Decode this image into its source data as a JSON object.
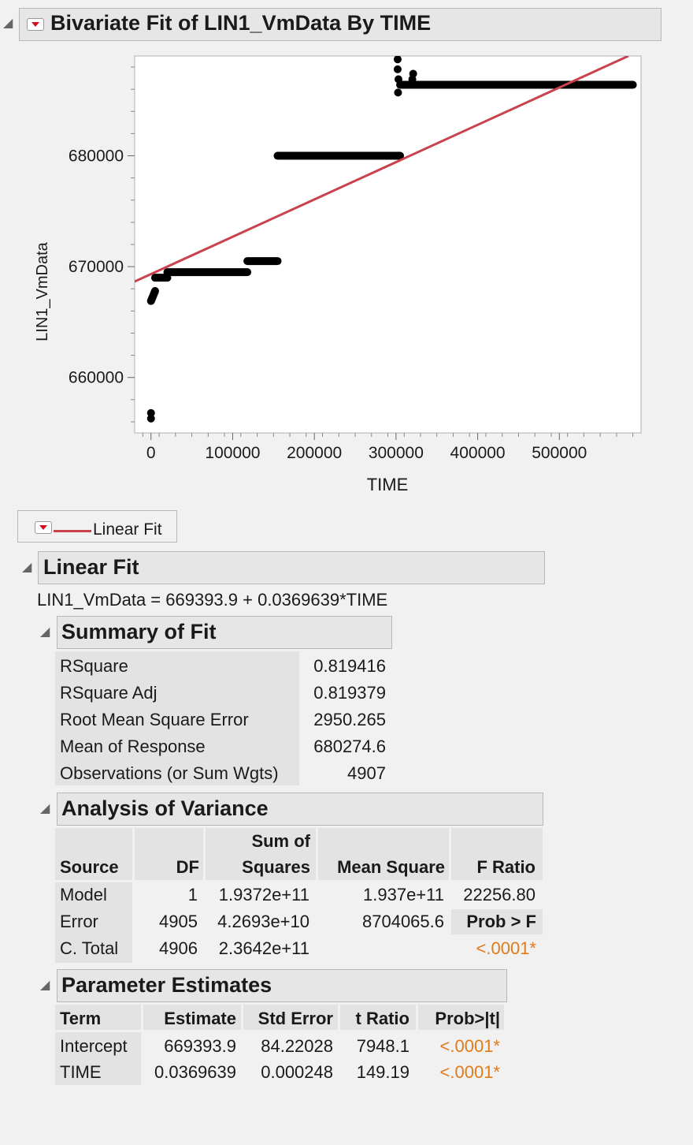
{
  "report": {
    "title": "Bivariate Fit of LIN1_VmData By TIME"
  },
  "chart_data": {
    "type": "scatter",
    "xlabel": "TIME",
    "ylabel": "LIN1_VmData",
    "xlim": [
      -20000,
      600000
    ],
    "ylim": [
      655000,
      689000
    ],
    "x_ticks": [
      0,
      100000,
      200000,
      300000,
      400000,
      500000
    ],
    "x_tick_labels": [
      "0",
      "100000",
      "200000",
      "300000",
      "400000",
      "500000"
    ],
    "y_ticks": [
      660000,
      670000,
      680000
    ],
    "y_tick_labels": [
      "660000",
      "670000",
      "680000"
    ],
    "series": [
      {
        "name": "LIN1_VmData",
        "segments": [
          {
            "x": [
              0,
              0
            ],
            "y": [
              656300,
              656300
            ]
          },
          {
            "x": [
              0,
              5000
            ],
            "y": [
              666900,
              667800
            ]
          },
          {
            "x": [
              5000,
              20000
            ],
            "y": [
              669000,
              669000
            ]
          },
          {
            "x": [
              20000,
              118000
            ],
            "y": [
              669500,
              669500
            ]
          },
          {
            "x": [
              118000,
              155000
            ],
            "y": [
              670500,
              670500
            ]
          },
          {
            "x": [
              155000,
              305000
            ],
            "y": [
              680000,
              680000
            ]
          },
          {
            "x": [
              305000,
              590000
            ],
            "y": [
              686400,
              686400
            ]
          }
        ]
      },
      {
        "name": "Linear Fit",
        "color": "#c9434e",
        "intercept": 669393.9,
        "slope": 0.0369639
      }
    ]
  },
  "legend": {
    "label": "Linear Fit",
    "color": "#c9434e"
  },
  "linear_fit": {
    "title": "Linear Fit",
    "equation": "LIN1_VmData = 669393.9 + 0.0369639*TIME"
  },
  "summary_of_fit": {
    "title": "Summary of Fit",
    "rows": [
      {
        "label": "RSquare",
        "value": "0.819416"
      },
      {
        "label": "RSquare Adj",
        "value": "0.819379"
      },
      {
        "label": "Root Mean Square Error",
        "value": "2950.265"
      },
      {
        "label": "Mean of Response",
        "value": "680274.6"
      },
      {
        "label": "Observations (or Sum Wgts)",
        "value": "4907"
      }
    ]
  },
  "anova": {
    "title": "Analysis of Variance",
    "headers": {
      "source": "Source",
      "df": "DF",
      "ss_top": "Sum of",
      "ss_bottom": "Squares",
      "ms": "Mean Square",
      "f": "F Ratio"
    },
    "rows": [
      {
        "source": "Model",
        "df": "1",
        "ss": "1.9372e+11",
        "ms": "1.937e+11",
        "f": "22256.80"
      },
      {
        "source": "Error",
        "df": "4905",
        "ss": "4.2693e+10",
        "ms": "8704065.6",
        "f": "Prob > F"
      },
      {
        "source": "C. Total",
        "df": "4906",
        "ss": "2.3642e+11",
        "ms": "",
        "f": "<.0001*"
      }
    ]
  },
  "parameter_estimates": {
    "title": "Parameter Estimates",
    "headers": {
      "term": "Term",
      "estimate": "Estimate",
      "stderr": "Std Error",
      "tratio": "t Ratio",
      "prob": "Prob>|t|"
    },
    "rows": [
      {
        "term": "Intercept",
        "estimate": "669393.9",
        "stderr": "84.22028",
        "tratio": "7948.1",
        "prob": "<.0001*"
      },
      {
        "term": "TIME",
        "estimate": "0.0369639",
        "stderr": "0.000248",
        "tratio": "149.19",
        "prob": "<.0001*"
      }
    ]
  }
}
